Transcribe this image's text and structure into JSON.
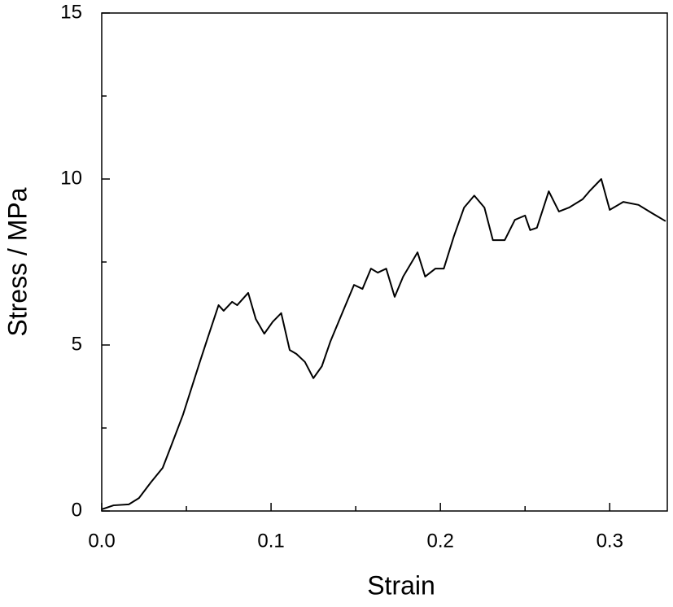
{
  "chart_data": {
    "type": "line",
    "x_label": "Strain",
    "y_label": "Stress / MPa",
    "xlim": [
      0,
      0.334
    ],
    "ylim": [
      0,
      15
    ],
    "xticks": [
      {
        "value": 0,
        "label": "0.0"
      },
      0.1,
      0.2,
      0.3
    ],
    "yticks": [
      0,
      5,
      10,
      15
    ],
    "xticks_minor": [
      0.05,
      0.15,
      0.25
    ],
    "yticks_minor": [
      2.5,
      7.5,
      12.5
    ],
    "series": [
      {
        "color": "#000000",
        "x": [
          0,
          0.007,
          0.016,
          0.022,
          0.029,
          0.036,
          0.041,
          0.048,
          0.058,
          0.0625,
          0.069,
          0.072,
          0.077,
          0.08,
          0.0865,
          0.091,
          0.096,
          0.101,
          0.106,
          0.111,
          0.115,
          0.12,
          0.125,
          0.13,
          0.135,
          0.142,
          0.149,
          0.154,
          0.159,
          0.163,
          0.168,
          0.173,
          0.178,
          0.1865,
          0.191,
          0.197,
          0.202,
          0.208,
          0.214,
          0.22,
          0.226,
          0.231,
          0.238,
          0.244,
          0.25,
          0.253,
          0.257,
          0.264,
          0.27,
          0.276,
          0.284,
          0.288,
          0.295,
          0.3,
          0.308,
          0.317,
          0.325,
          0.333
        ],
        "values": [
          0.05,
          0.17,
          0.2,
          0.39,
          0.86,
          1.3,
          1.96,
          2.9,
          4.5,
          5.2,
          6.2,
          6.03,
          6.3,
          6.2,
          6.57,
          5.78,
          5.34,
          5.7,
          5.96,
          4.85,
          4.73,
          4.49,
          4.0,
          4.36,
          5.1,
          5.96,
          6.81,
          6.69,
          7.3,
          7.18,
          7.3,
          6.45,
          7.06,
          7.79,
          7.06,
          7.3,
          7.3,
          8.28,
          9.14,
          9.5,
          9.14,
          8.16,
          8.16,
          8.77,
          8.9,
          8.46,
          8.53,
          9.63,
          9.02,
          9.14,
          9.39,
          9.63,
          10.0,
          9.07,
          9.31,
          9.22,
          8.97,
          8.73
        ]
      }
    ]
  }
}
